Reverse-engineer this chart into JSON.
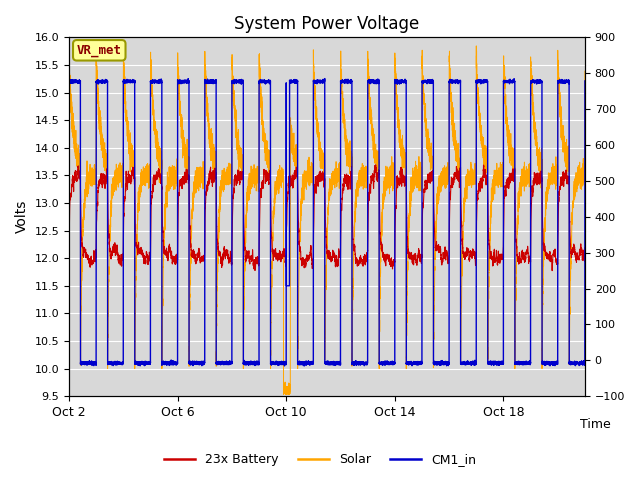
{
  "title": "System Power Voltage",
  "xlabel": "Time",
  "ylabel_left": "Volts",
  "ylim_left": [
    9.5,
    16.0
  ],
  "ylim_right": [
    -100,
    900
  ],
  "yticks_left": [
    9.5,
    10.0,
    10.5,
    11.0,
    11.5,
    12.0,
    12.5,
    13.0,
    13.5,
    14.0,
    14.5,
    15.0,
    15.5,
    16.0
  ],
  "yticks_right": [
    -100,
    0,
    100,
    200,
    300,
    400,
    500,
    600,
    700,
    800,
    900
  ],
  "xtick_labels": [
    "Oct 2",
    "Oct 6",
    "Oct 10",
    "Oct 14",
    "Oct 18"
  ],
  "xtick_positions": [
    0,
    4,
    8,
    12,
    16
  ],
  "legend_labels": [
    "23x Battery",
    "Solar",
    "CM1_in"
  ],
  "legend_colors": [
    "#cc0000",
    "#ffa500",
    "#0000cc"
  ],
  "line_colors": {
    "battery": "#cc0000",
    "solar": "#ffa500",
    "cm1": "#0000cc"
  },
  "annotation_text": "VR_met",
  "annotation_fg": "#8b0000",
  "annotation_bg": "#ffff99",
  "annotation_edge": "#999900",
  "background_color": "#d8d8d8",
  "grid_color": "#ffffff",
  "n_days": 19,
  "period": 1.0,
  "duty_high": 0.42,
  "cm1_high": 15.2,
  "cm1_low": 10.1
}
